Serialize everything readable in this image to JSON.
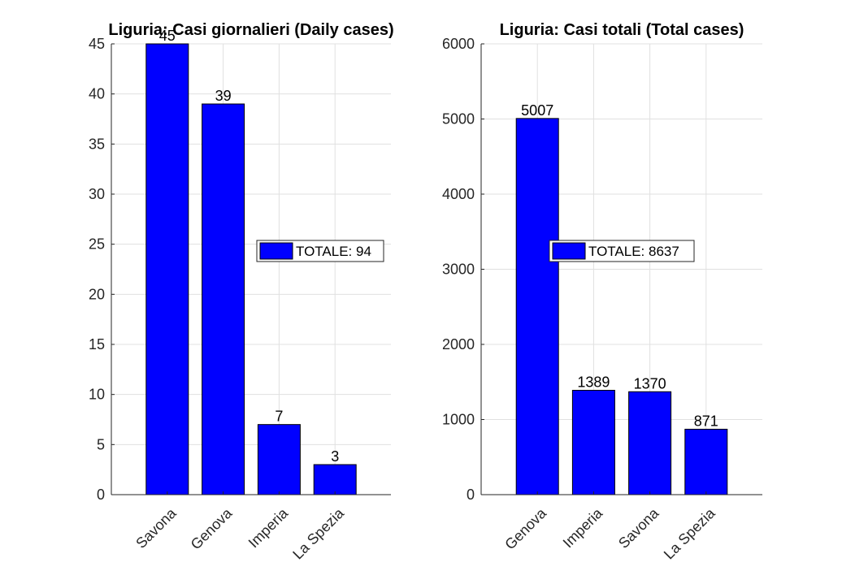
{
  "chart_data": [
    {
      "type": "bar",
      "title": "Liguria: Casi giornalieri (Daily cases)",
      "categories": [
        "Savona",
        "Genova",
        "Imperia",
        "La Spezia"
      ],
      "values": [
        45,
        39,
        7,
        3
      ],
      "data_labels": [
        "45",
        "39",
        "7",
        "3"
      ],
      "ylim": [
        0,
        45
      ],
      "yticks": [
        0,
        5,
        10,
        15,
        20,
        25,
        30,
        35,
        40,
        45
      ],
      "xlabel": "",
      "ylabel": "",
      "grid": true,
      "bar_color": "#0000ff",
      "legend": {
        "label": "TOTALE: 94",
        "placement": "center-right"
      }
    },
    {
      "type": "bar",
      "title": "Liguria: Casi totali (Total cases)",
      "categories": [
        "Genova",
        "Imperia",
        "Savona",
        "La Spezia"
      ],
      "values": [
        5007,
        1389,
        1370,
        871
      ],
      "data_labels": [
        "5007",
        "1389",
        "1370",
        "871"
      ],
      "ylim": [
        0,
        6000
      ],
      "yticks": [
        0,
        1000,
        2000,
        3000,
        4000,
        5000,
        6000
      ],
      "xlabel": "",
      "ylabel": "",
      "grid": true,
      "bar_color": "#0000ff",
      "legend": {
        "label": "TOTALE: 8637",
        "placement": "center-left"
      }
    }
  ]
}
